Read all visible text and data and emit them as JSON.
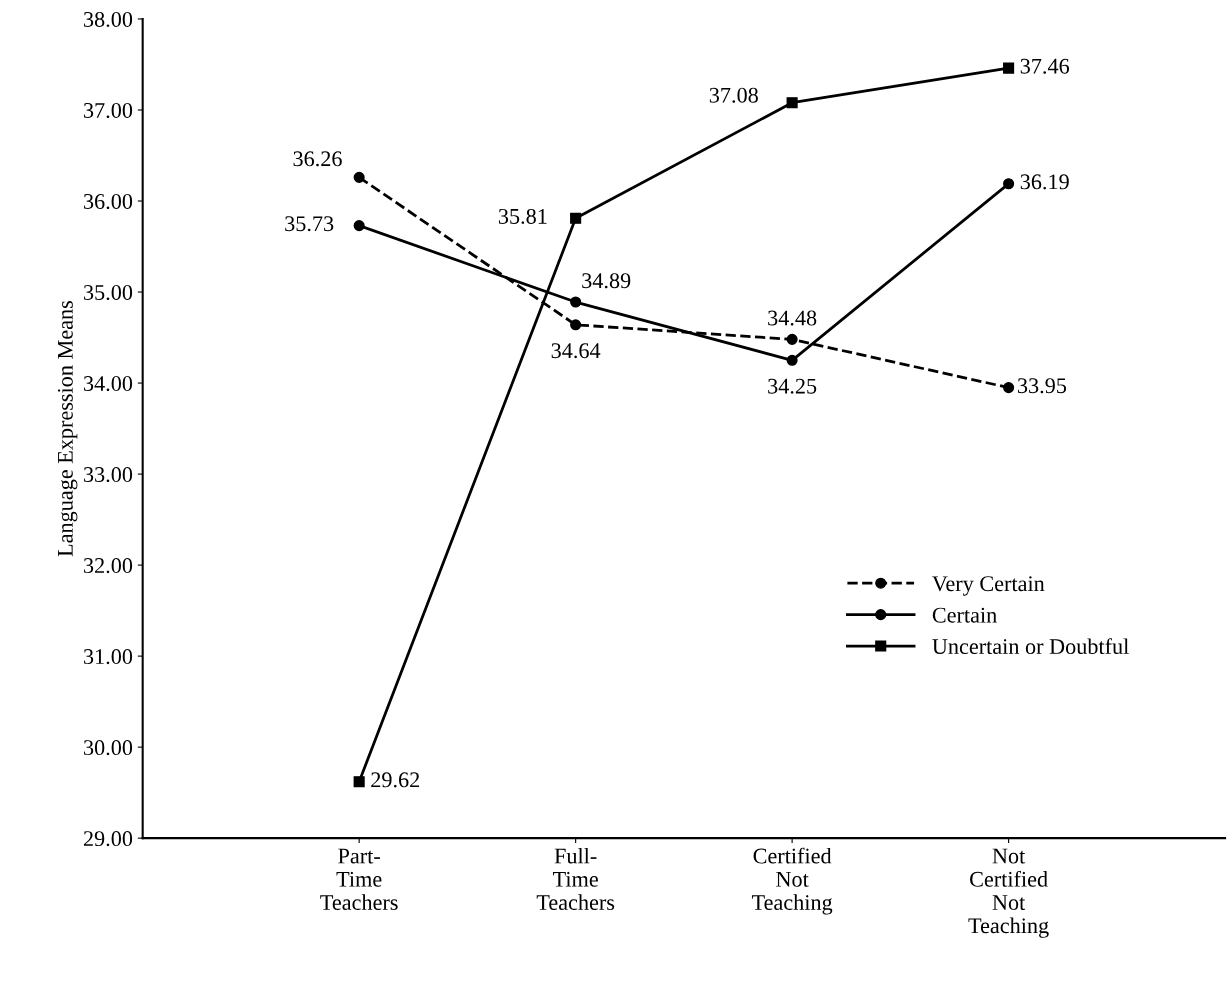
{
  "chart_data": {
    "type": "line",
    "ylabel": "Language Expression Means",
    "categories": [
      "Part-\nTime\nTeachers",
      "Full-\nTime\nTeachers",
      "Certified\nNot\nTeaching",
      "Not\nCertified\nNot\nTeaching"
    ],
    "series": [
      {
        "name": "Very Certain",
        "color": "#000000",
        "values": [
          36.26,
          34.64,
          34.48,
          33.95
        ],
        "marker": "circle",
        "line_style": "dashed"
      },
      {
        "name": "Certain",
        "color": "#000000",
        "values": [
          35.73,
          34.89,
          34.25,
          36.19
        ],
        "marker": "circle",
        "line_style": "solid"
      },
      {
        "name": "Uncertain or Doubtful",
        "color": "#000000",
        "values": [
          29.62,
          35.81,
          37.08,
          37.46
        ],
        "marker": "square",
        "line_style": "solid"
      }
    ],
    "ylim": [
      29,
      38
    ],
    "yticks": [
      {
        "value": 29,
        "label": "29.00"
      },
      {
        "value": 30,
        "label": "30.00"
      },
      {
        "value": 31,
        "label": "31.00"
      },
      {
        "value": 32,
        "label": "32.00"
      },
      {
        "value": 33,
        "label": "33.00"
      },
      {
        "value": 34,
        "label": "34.00"
      },
      {
        "value": 35,
        "label": "35.00"
      },
      {
        "value": 36,
        "label": "36.00"
      },
      {
        "value": 37,
        "label": "37.00"
      },
      {
        "value": 38,
        "label": "38.00"
      }
    ],
    "data_labels": true,
    "legend": "right",
    "grid": false
  }
}
